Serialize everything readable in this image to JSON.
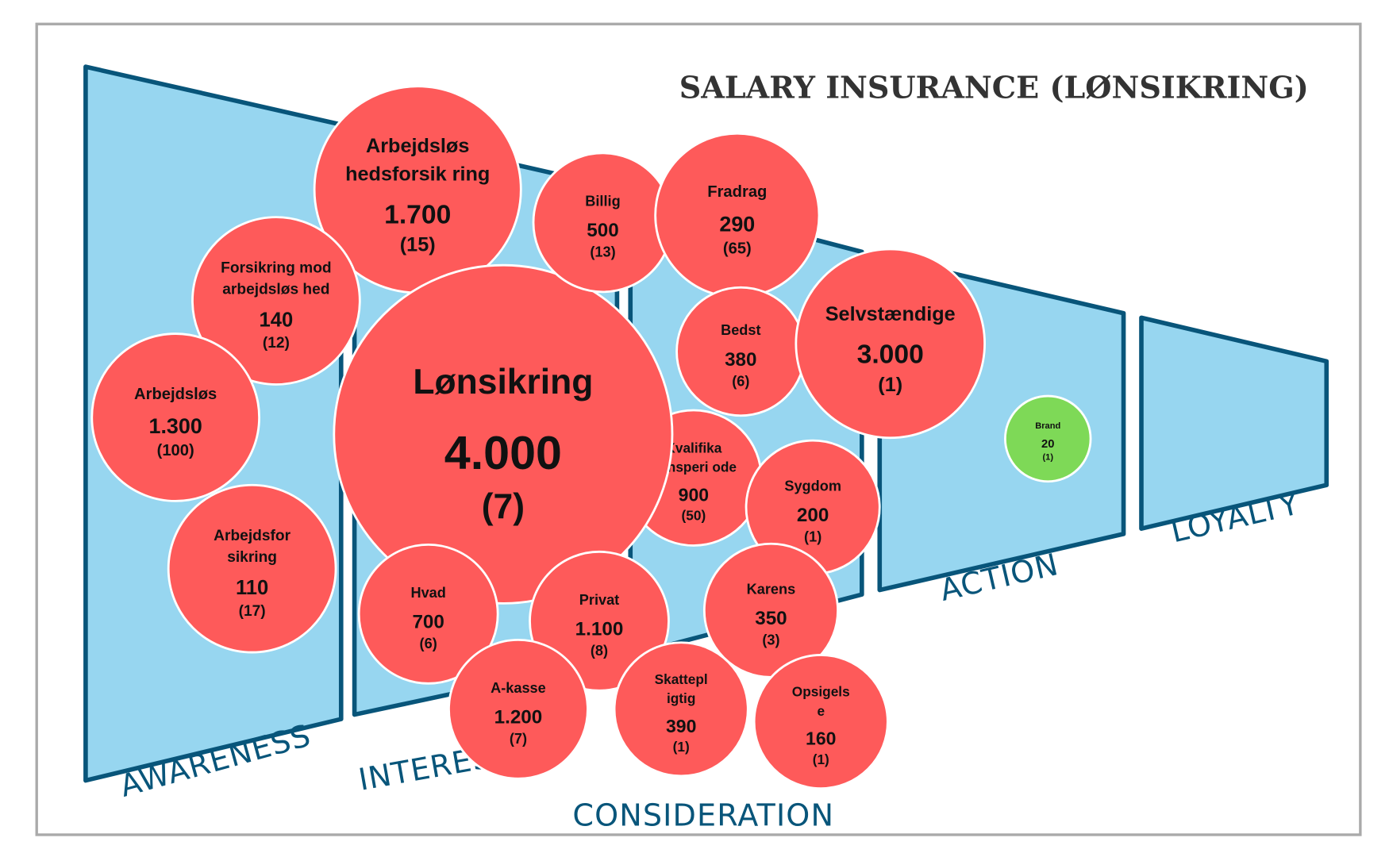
{
  "title": "SALARY INSURANCE (LØNSIKRING)",
  "colors": {
    "stage_fill": "#97d6f0",
    "stage_stroke": "#08557a",
    "bubble": "#fe5a5a",
    "bubble_green": "#7ed957"
  },
  "stages": [
    {
      "label": "AWARENESS"
    },
    {
      "label": "INTEREST"
    },
    {
      "label": "CONSIDERATION"
    },
    {
      "label": "ACTION"
    },
    {
      "label": "LOYALTY"
    }
  ],
  "bubbles": [
    {
      "name": [
        "Arbejdsløs",
        "hedsforsik ring"
      ],
      "value": "1.700",
      "count": "(15)",
      "color": "red"
    },
    {
      "name": [
        "Forsikring mod",
        "arbejdsløs hed"
      ],
      "value": "140",
      "count": "(12)",
      "color": "red"
    },
    {
      "name": [
        "Arbejdsløs"
      ],
      "value": "1.300",
      "count": "(100)",
      "color": "red"
    },
    {
      "name": [
        "Arbejdsfor",
        "sikring"
      ],
      "value": "110",
      "count": "(17)",
      "color": "red"
    },
    {
      "name": [
        "Kvalifika",
        "tionsperi ode"
      ],
      "value": "900",
      "count": "(50)",
      "color": "red"
    },
    {
      "name": [
        "Lønsikring"
      ],
      "value": "4.000",
      "count": "(7)",
      "color": "red"
    },
    {
      "name": [
        "Billig"
      ],
      "value": "500",
      "count": "(13)",
      "color": "red"
    },
    {
      "name": [
        "Fradrag"
      ],
      "value": "290",
      "count": "(65)",
      "color": "red"
    },
    {
      "name": [
        "Bedst"
      ],
      "value": "380",
      "count": "(6)",
      "color": "red"
    },
    {
      "name": [
        "Selvstændige"
      ],
      "value": "3.000",
      "count": "(1)",
      "color": "red"
    },
    {
      "name": [
        "Sygdom"
      ],
      "value": "200",
      "count": "(1)",
      "color": "red"
    },
    {
      "name": [
        "Hvad"
      ],
      "value": "700",
      "count": "(6)",
      "color": "red"
    },
    {
      "name": [
        "Privat"
      ],
      "value": "1.100",
      "count": "(8)",
      "color": "red"
    },
    {
      "name": [
        "Karens"
      ],
      "value": "350",
      "count": "(3)",
      "color": "red"
    },
    {
      "name": [
        "A-kasse"
      ],
      "value": "1.200",
      "count": "(7)",
      "color": "red"
    },
    {
      "name": [
        "Skattepl",
        "igtig"
      ],
      "value": "390",
      "count": "(1)",
      "color": "red"
    },
    {
      "name": [
        "Opsigels",
        "e"
      ],
      "value": "160",
      "count": "(1)",
      "color": "red"
    },
    {
      "name": [
        "Brand"
      ],
      "value": "20",
      "count": "(1)",
      "color": "green"
    }
  ]
}
